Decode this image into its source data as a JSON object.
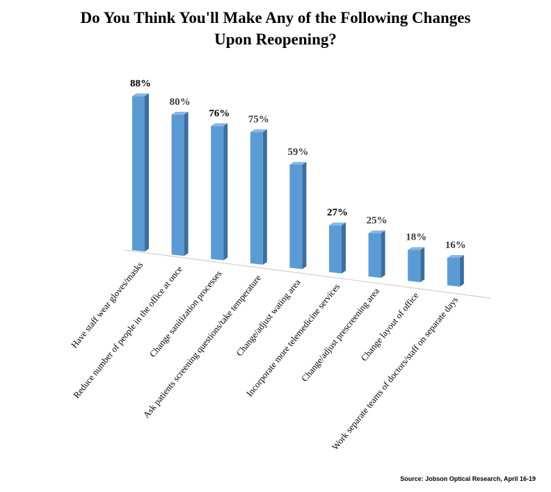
{
  "chart_data": {
    "type": "bar",
    "title_line1": "Do You Think You'll Make Any of the Following Changes",
    "title_line2": "Upon Reopening?",
    "categories": [
      "Have staff wear gloves/masks",
      "Reduce number of people in the office at once",
      "Change sanitization processes",
      "Ask patients screening questions/take temperature",
      "Change/adjust wating area",
      "Incorporate more telemedicine services",
      "Change/adjust prescreening area",
      "Change layout of office",
      "Work separate teams of doctors/staff on separate days"
    ],
    "values": [
      88,
      80,
      76,
      75,
      59,
      27,
      25,
      18,
      16
    ],
    "data_labels": [
      "88%",
      "80%",
      "76%",
      "75%",
      "59%",
      "27%",
      "25%",
      "18%",
      "16%"
    ],
    "value_unit": "%",
    "ylim": [
      0,
      100
    ],
    "grid": false,
    "legend": false,
    "source": "Source: Jobson Optical Research, April 16-19",
    "colors": {
      "bar_front": "#5b9bd5",
      "bar_side": "#3a6f9f",
      "bar_top": "#8ab6e2",
      "baseline": "#d0d0d0",
      "label_dark": "#000000",
      "label_grey": "#3b3b3b"
    }
  }
}
